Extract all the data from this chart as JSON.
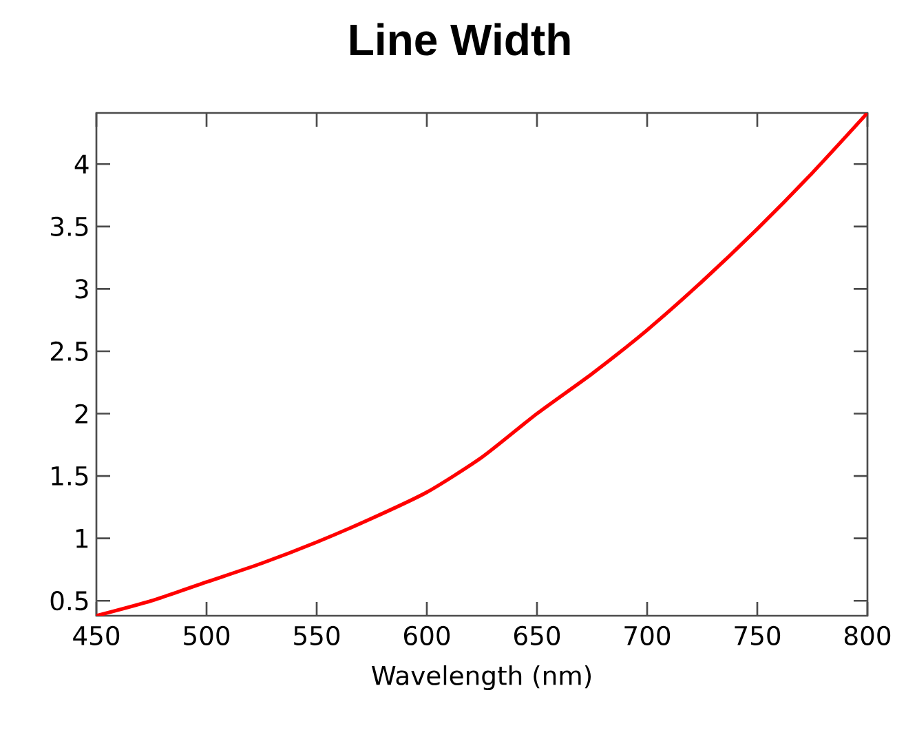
{
  "chart_data": {
    "type": "line",
    "title": "Line Width",
    "xlabel": "Wavelength (nm)",
    "x": [
      450,
      475,
      500,
      525,
      550,
      575,
      600,
      625,
      650,
      675,
      700,
      725,
      750,
      775,
      800
    ],
    "series": [
      {
        "color": "#ff0000",
        "values": [
          0.38,
          0.5,
          0.65,
          0.8,
          0.97,
          1.16,
          1.37,
          1.65,
          2.0,
          2.32,
          2.67,
          3.06,
          3.48,
          3.93,
          4.41
        ]
      }
    ],
    "xlim": [
      450,
      800
    ],
    "ylim": [
      0.38,
      4.41
    ],
    "xticks": [
      450,
      500,
      550,
      600,
      650,
      700,
      750,
      800
    ],
    "yticks": [
      0.5,
      1,
      1.5,
      2,
      2.5,
      3,
      3.5,
      4
    ],
    "marker": "none",
    "line_style": "solid"
  }
}
